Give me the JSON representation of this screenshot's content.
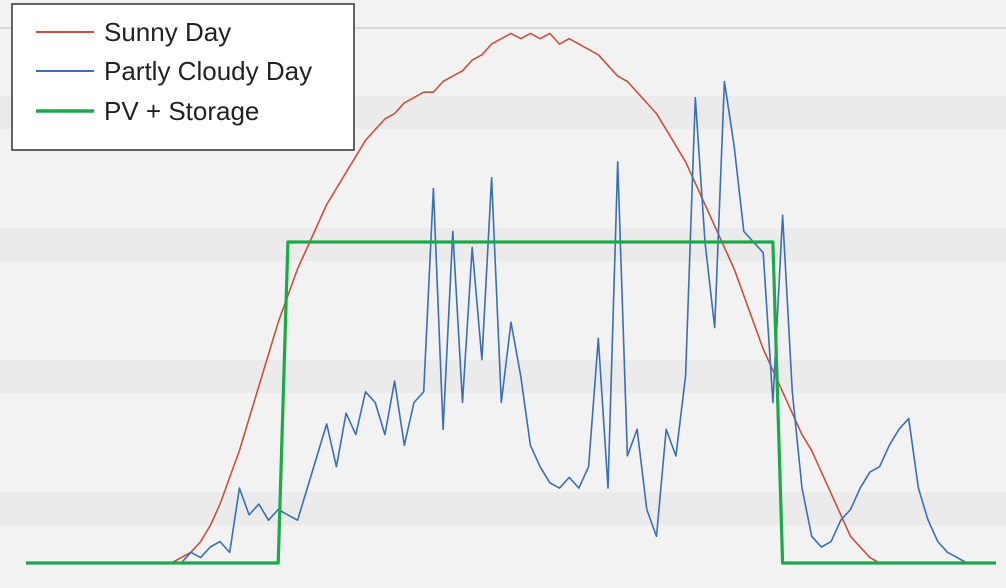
{
  "chart_data": {
    "type": "line",
    "title": "",
    "xlabel": "",
    "ylabel": "",
    "xlim": [
      0,
      100
    ],
    "ylim": [
      0,
      100
    ],
    "grid": true,
    "legend_position": "top-left",
    "x": [
      0,
      1,
      2,
      3,
      4,
      5,
      6,
      7,
      8,
      9,
      10,
      11,
      12,
      13,
      14,
      15,
      16,
      17,
      18,
      19,
      20,
      21,
      22,
      23,
      24,
      25,
      26,
      27,
      28,
      29,
      30,
      31,
      32,
      33,
      34,
      35,
      36,
      37,
      38,
      39,
      40,
      41,
      42,
      43,
      44,
      45,
      46,
      47,
      48,
      49,
      50,
      51,
      52,
      53,
      54,
      55,
      56,
      57,
      58,
      59,
      60,
      61,
      62,
      63,
      64,
      65,
      66,
      67,
      68,
      69,
      70,
      71,
      72,
      73,
      74,
      75,
      76,
      77,
      78,
      79,
      80,
      81,
      82,
      83,
      84,
      85,
      86,
      87,
      88,
      89,
      90,
      91,
      92,
      93,
      94,
      95,
      96,
      97,
      98,
      99,
      100
    ],
    "series": [
      {
        "name": "Sunny Day",
        "color": "#c8503c",
        "values": [
          0,
          0,
          0,
          0,
          0,
          0,
          0,
          0,
          0,
          0,
          0,
          0,
          0,
          0,
          0,
          0,
          1,
          2,
          4,
          7,
          11,
          16,
          21,
          27,
          33,
          39,
          45,
          50,
          55,
          59,
          63,
          67,
          70,
          73,
          76,
          79,
          81,
          83,
          84,
          86,
          87,
          88,
          88,
          90,
          91,
          92,
          94,
          95,
          97,
          98,
          99,
          98,
          99,
          98,
          99,
          97,
          98,
          97,
          96,
          95,
          93,
          91,
          90,
          88,
          86,
          84,
          81,
          78,
          75,
          71,
          67,
          63,
          59,
          55,
          50,
          45,
          40,
          36,
          32,
          28,
          24,
          21,
          17,
          13,
          9,
          5,
          3,
          1,
          0,
          0,
          0,
          0,
          0,
          0,
          0,
          0,
          0,
          0,
          0,
          0,
          0
        ]
      },
      {
        "name": "Partly Cloudy Day",
        "color": "#3c6eb4",
        "values": [
          0,
          0,
          0,
          0,
          0,
          0,
          0,
          0,
          0,
          0,
          0,
          0,
          0,
          0,
          0,
          0,
          0,
          2,
          1,
          3,
          4,
          2,
          14,
          9,
          11,
          8,
          10,
          9,
          8,
          14,
          20,
          26,
          18,
          28,
          24,
          32,
          30,
          24,
          34,
          22,
          30,
          32,
          70,
          25,
          62,
          30,
          59,
          38,
          72,
          30,
          45,
          35,
          22,
          18,
          15,
          14,
          16,
          14,
          18,
          42,
          14,
          75,
          20,
          25,
          10,
          5,
          25,
          20,
          35,
          87,
          60,
          44,
          90,
          78,
          62,
          60,
          58,
          30,
          65,
          32,
          14,
          5,
          3,
          4,
          8,
          10,
          14,
          17,
          18,
          22,
          25,
          27,
          14,
          8,
          4,
          2,
          1,
          0,
          0,
          0,
          0
        ]
      },
      {
        "name": "PV + Storage",
        "color": "#1aab48",
        "values": [
          0,
          0,
          0,
          0,
          0,
          0,
          0,
          0,
          0,
          0,
          0,
          0,
          0,
          0,
          0,
          0,
          0,
          0,
          0,
          0,
          0,
          0,
          0,
          0,
          0,
          0,
          0,
          60,
          60,
          60,
          60,
          60,
          60,
          60,
          60,
          60,
          60,
          60,
          60,
          60,
          60,
          60,
          60,
          60,
          60,
          60,
          60,
          60,
          60,
          60,
          60,
          60,
          60,
          60,
          60,
          60,
          60,
          60,
          60,
          60,
          60,
          60,
          60,
          60,
          60,
          60,
          60,
          60,
          60,
          60,
          60,
          60,
          60,
          60,
          60,
          60,
          60,
          60,
          0,
          0,
          0,
          0,
          0,
          0,
          0,
          0,
          0,
          0,
          0,
          0,
          0,
          0,
          0,
          0,
          0,
          0,
          0,
          0,
          0,
          0,
          0
        ]
      }
    ]
  },
  "legend": {
    "items": [
      {
        "label": "Sunny Day",
        "color": "#c8503c"
      },
      {
        "label": "Partly Cloudy Day",
        "color": "#3c6eb4"
      },
      {
        "label": "PV + Storage",
        "color": "#1aab48"
      }
    ]
  }
}
